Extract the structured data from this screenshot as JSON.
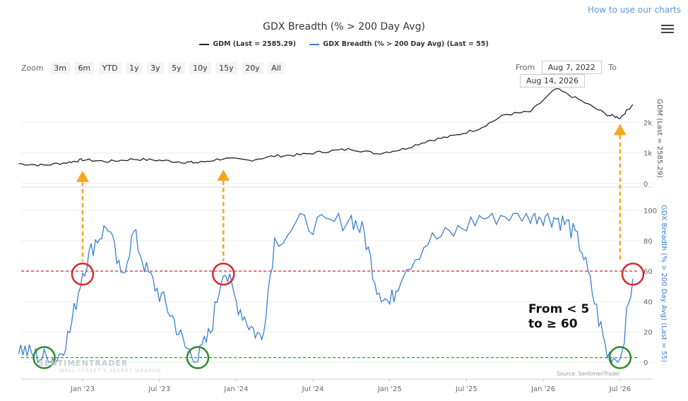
{
  "help_link": "How to use our charts",
  "title": "GDX Breadth (% > 200 Day Avg)",
  "legend": [
    {
      "label": "GDM (Last = 2585.29)",
      "color": "#222222"
    },
    {
      "label": "GDX Breadth (% > 200 Day Avg) (Last = 55)",
      "color": "#3a7fd0"
    }
  ],
  "zoom": {
    "label": "Zoom",
    "buttons": [
      "3m",
      "6m",
      "YTD",
      "1y",
      "3y",
      "5y",
      "10y",
      "15y",
      "20y",
      "All"
    ]
  },
  "range": {
    "from_label": "From",
    "from_value": "Aug 7, 2022",
    "to_label": "To",
    "to_value": "Aug 14, 2026"
  },
  "annotation": "From < 5\nto ≥ 60",
  "watermark": "SENTIMENTRADER",
  "watermark_sub": "WALL STREET'S SECRET WEAPON",
  "source": "Source: SentimenTrader",
  "colors": {
    "gdm": "#222222",
    "breadth": "#3a7fd0",
    "upper_line": "#d9262c",
    "lower_line": "#2e8b2e",
    "arrow": "#f5a623"
  },
  "chart_data": [
    {
      "type": "line",
      "name_panel": "upper",
      "ylabel": "GDM (Last = 2585.29)",
      "ylim": [
        0,
        3000
      ],
      "yticks": [
        "0",
        "1k",
        "2k"
      ],
      "x_ticks": [
        "Jan '23",
        "Jul '23",
        "Jan '24",
        "Jul '24",
        "Jan '25",
        "Jul '25",
        "Jan '26",
        "Jul '26"
      ],
      "series": [
        {
          "name": "GDM (Last = 2585.29)",
          "x": [
            "2022-08",
            "2022-10",
            "2022-12",
            "2023-01",
            "2023-03",
            "2023-05",
            "2023-07",
            "2023-09",
            "2023-10",
            "2023-12",
            "2024-02",
            "2024-04",
            "2024-06",
            "2024-08",
            "2024-10",
            "2024-12",
            "2025-02",
            "2025-04",
            "2025-06",
            "2025-08",
            "2025-10",
            "2025-12",
            "2026-02",
            "2026-04",
            "2026-06",
            "2026-07",
            "2026-08"
          ],
          "values": [
            650,
            600,
            700,
            780,
            720,
            800,
            760,
            700,
            680,
            820,
            760,
            900,
            940,
            1050,
            1130,
            980,
            1120,
            1400,
            1560,
            1800,
            2250,
            2350,
            3100,
            2700,
            2250,
            2150,
            2585
          ]
        }
      ],
      "markers": [
        {
          "x": "2023-01",
          "label": "up-arrow"
        },
        {
          "x": "2023-12",
          "label": "up-arrow"
        },
        {
          "x": "2026-07",
          "label": "up-arrow"
        }
      ]
    },
    {
      "type": "line",
      "name_panel": "lower",
      "ylabel": "GDX Breadth (% > 200 Day Avg) (Last = 55)",
      "ylim": [
        0,
        100
      ],
      "yticks": [
        "0",
        "20",
        "40",
        "60",
        "80",
        "100"
      ],
      "series": [
        {
          "name": "GDX Breadth (% > 200 Day Avg) (Last = 55)",
          "x": [
            "2022-08",
            "2022-09",
            "2022-10",
            "2022-11",
            "2022-12",
            "2023-01",
            "2023-02",
            "2023-03",
            "2023-04",
            "2023-05",
            "2023-06",
            "2023-07",
            "2023-08",
            "2023-09",
            "2023-10",
            "2023-11",
            "2023-12",
            "2024-01",
            "2024-02",
            "2024-03",
            "2024-04",
            "2024-06",
            "2024-08",
            "2024-10",
            "2024-11",
            "2024-12",
            "2025-01",
            "2025-02",
            "2025-04",
            "2025-06",
            "2025-08",
            "2025-10",
            "2025-12",
            "2026-01",
            "2026-02",
            "2026-03",
            "2026-04",
            "2026-05",
            "2026-06",
            "2026-07",
            "2026-08"
          ],
          "values": [
            10,
            5,
            3,
            2,
            20,
            60,
            80,
            90,
            55,
            85,
            60,
            45,
            30,
            10,
            2,
            20,
            63,
            40,
            25,
            15,
            80,
            92,
            90,
            95,
            85,
            50,
            38,
            60,
            80,
            85,
            95,
            97,
            97,
            97,
            95,
            90,
            75,
            40,
            5,
            2,
            55
          ]
        }
      ],
      "hlines": [
        {
          "y": 60,
          "style": "dashed",
          "color": "#d9262c"
        },
        {
          "y": 3,
          "style": "dashed",
          "color": "#2e8b2e"
        }
      ],
      "circles": [
        {
          "x": "2022-10",
          "y": 3,
          "color": "green"
        },
        {
          "x": "2023-01",
          "y": 58,
          "color": "red"
        },
        {
          "x": "2023-10",
          "y": 3,
          "color": "green"
        },
        {
          "x": "2023-12",
          "y": 58,
          "color": "red"
        },
        {
          "x": "2026-07",
          "y": 3,
          "color": "green"
        },
        {
          "x": "2026-08",
          "y": 58,
          "color": "red"
        }
      ]
    }
  ]
}
